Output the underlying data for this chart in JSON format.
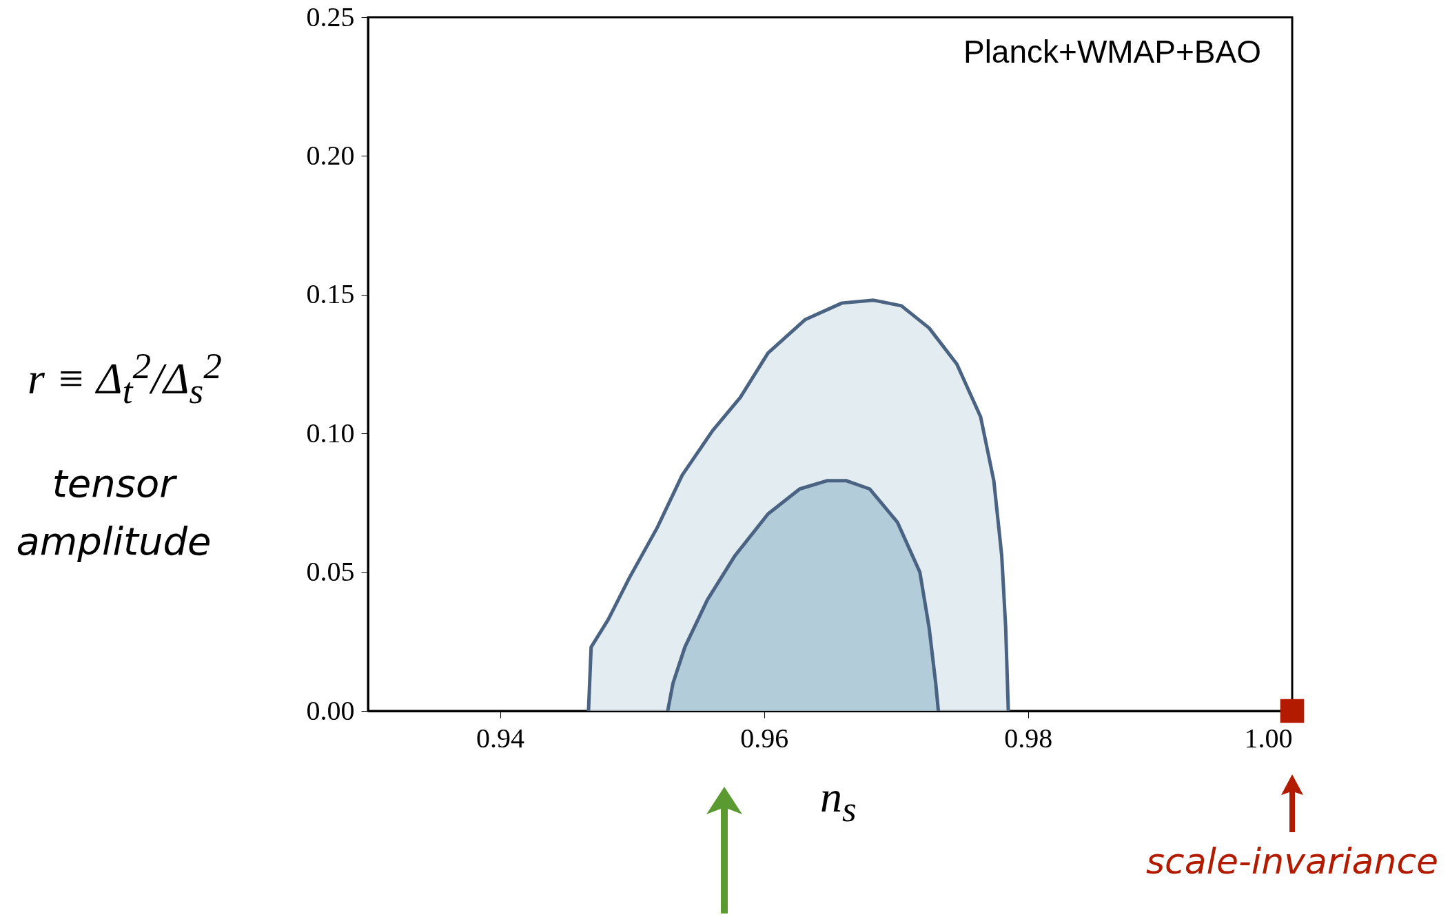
{
  "chart_data": {
    "type": "area",
    "xlabel": "n$_{s}$",
    "ylabel": "r ≡ Δ$_{t}$$^{2}$/Δ$_{s}$$^{2}$",
    "annotations": [
      "Planck+WMAP+BAO",
      "tensor amplitude",
      "scale-invariance"
    ],
    "series": [
      {
        "color": "#d6e4eb",
        "x": [
          0.9467,
          0.9469,
          0.9482,
          0.9498,
          0.9519,
          0.9538,
          0.9561,
          0.9582,
          0.9603,
          0.9631,
          0.9659,
          0.9683,
          0.9704,
          0.9725,
          0.9746,
          0.9764,
          0.9774,
          0.978,
          0.9783,
          0.9785
        ],
        "values": [
          0,
          0.023,
          0.033,
          0.048,
          0.066,
          0.085,
          0.101,
          0.113,
          0.129,
          0.141,
          0.147,
          0.148,
          0.146,
          0.138,
          0.125,
          0.106,
          0.083,
          0.056,
          0.03,
          0
        ]
      },
      {
        "color": "#9ebfd0",
        "x": [
          0.9527,
          0.9531,
          0.954,
          0.9557,
          0.9578,
          0.9603,
          0.9627,
          0.9648,
          0.9662,
          0.968,
          0.9701,
          0.9718,
          0.9725,
          0.973,
          0.9732
        ],
        "values": [
          0,
          0.01,
          0.023,
          0.04,
          0.056,
          0.071,
          0.08,
          0.083,
          0.083,
          0.08,
          0.068,
          0.05,
          0.03,
          0.01,
          0
        ]
      },
      {
        "type": "scatter",
        "color": "#b31b00",
        "marker": "square",
        "x": [
          1.0
        ],
        "values": [
          0
        ]
      }
    ],
    "xlim": [
      0.93,
      1.0
    ],
    "xticks": [
      0.94,
      0.96,
      0.98,
      {
        "value": 1,
        "label": "1.00"
      }
    ],
    "ylim": [
      0,
      0.25
    ],
    "yticks": [
      {
        "value": 0,
        "label": "0.00"
      },
      0.05,
      {
        "value": 0.1,
        "label": "0.10"
      },
      0.15,
      {
        "value": 0.2,
        "label": "0.20"
      },
      0.25
    ],
    "grid": false
  }
}
